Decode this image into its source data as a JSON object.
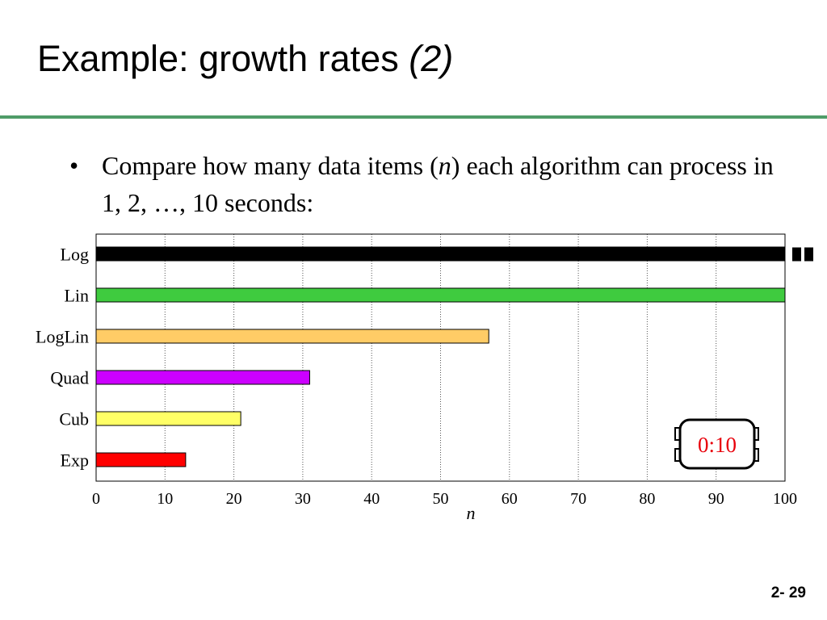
{
  "slide": {
    "title_main": "Example: growth rates",
    "title_suffix": "(2)",
    "bullet_symbol": "•",
    "bullet_before_n": "Compare how many data items (",
    "bullet_n": "n",
    "bullet_after_n": ") each algorithm can process in 1, 2, …, 10 seconds:",
    "slide_number": "2- 29"
  },
  "timer": {
    "label": "0:10",
    "color": "#e8000b"
  },
  "chart_data": {
    "type": "bar",
    "orientation": "horizontal",
    "categories": [
      "Log",
      "Lin",
      "LogLin",
      "Quad",
      "Cub",
      "Exp"
    ],
    "values": [
      100,
      100,
      57,
      31,
      21,
      13
    ],
    "colors": [
      "#000000",
      "#3fcb3f",
      "#ffcc66",
      "#cc00ff",
      "#ffff66",
      "#ff0000"
    ],
    "overflow": [
      true,
      false,
      false,
      false,
      false,
      false
    ],
    "xlabel": "n",
    "ylabel": "",
    "xlim": [
      0,
      100
    ],
    "xticks": [
      0,
      10,
      20,
      30,
      40,
      50,
      60,
      70,
      80,
      90,
      100
    ],
    "grid": true,
    "legend": "none"
  }
}
